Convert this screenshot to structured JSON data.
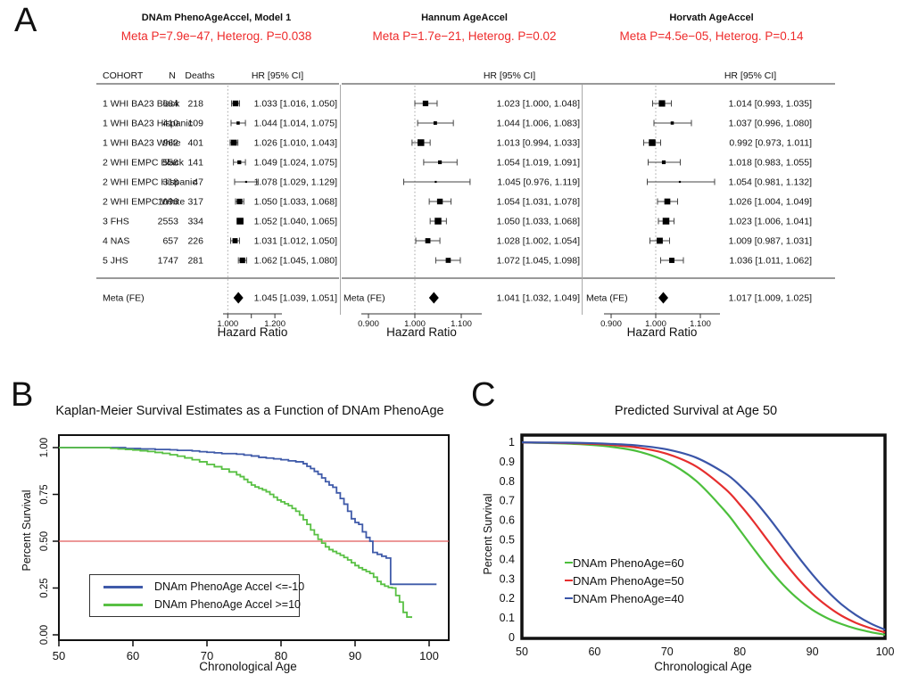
{
  "panels": {
    "a": "A",
    "b": "B",
    "c": "C"
  },
  "subtitle_color": "#ee2b2b",
  "chart_data": [
    {
      "type": "forest",
      "title": "DNAm PhenoAgeAccel, Model 1",
      "subtitle": "Meta P=7.9e−47, Heterog. P=0.038",
      "columns": [
        "COHORT",
        "N",
        "Deaths",
        "HR [95% CI]"
      ],
      "xlabel": "Hazard Ratio",
      "axis": {
        "ticks": [
          1.0,
          1.1,
          1.2
        ],
        "tick_labels": [
          "1.000",
          "",
          "1.200"
        ],
        "ref_line": 1.0
      },
      "rows": [
        {
          "cohort": "1 WHI BA23 Black",
          "n": 664,
          "deaths": 218,
          "hr": 1.033,
          "ci_low": 1.016,
          "ci_high": 1.05,
          "label": "1.033 [1.016, 1.050]"
        },
        {
          "cohort": "1 WHI BA23 Hispanic",
          "n": 410,
          "deaths": 109,
          "hr": 1.044,
          "ci_low": 1.014,
          "ci_high": 1.075,
          "label": "1.044 [1.014, 1.075]"
        },
        {
          "cohort": "1 WHI BA23 White",
          "n": 962,
          "deaths": 401,
          "hr": 1.026,
          "ci_low": 1.01,
          "ci_high": 1.043,
          "label": "1.026 [1.010, 1.043]"
        },
        {
          "cohort": "2 WHI EMPC Black",
          "n": 558,
          "deaths": 141,
          "hr": 1.049,
          "ci_low": 1.024,
          "ci_high": 1.075,
          "label": "1.049 [1.024, 1.075]"
        },
        {
          "cohort": "2 WHI EMPC Hispanic",
          "n": 318,
          "deaths": 47,
          "hr": 1.078,
          "ci_low": 1.029,
          "ci_high": 1.129,
          "label": "1.078 [1.029, 1.129]"
        },
        {
          "cohort": "2 WHI EMPC White",
          "n": 1096,
          "deaths": 317,
          "hr": 1.05,
          "ci_low": 1.033,
          "ci_high": 1.068,
          "label": "1.050 [1.033, 1.068]"
        },
        {
          "cohort": "3 FHS",
          "n": 2553,
          "deaths": 334,
          "hr": 1.052,
          "ci_low": 1.04,
          "ci_high": 1.065,
          "label": "1.052 [1.040, 1.065]"
        },
        {
          "cohort": "4 NAS",
          "n": 657,
          "deaths": 226,
          "hr": 1.031,
          "ci_low": 1.012,
          "ci_high": 1.05,
          "label": "1.031 [1.012, 1.050]"
        },
        {
          "cohort": "5 JHS",
          "n": 1747,
          "deaths": 281,
          "hr": 1.062,
          "ci_low": 1.045,
          "ci_high": 1.08,
          "label": "1.062 [1.045, 1.080]"
        }
      ],
      "meta": {
        "cohort": "Meta (FE)",
        "hr": 1.045,
        "ci_low": 1.039,
        "ci_high": 1.051,
        "label": "1.045 [1.039, 1.051]"
      }
    },
    {
      "type": "forest",
      "title": "Hannum AgeAccel",
      "subtitle": "Meta P=1.7e−21, Heterog. P=0.02",
      "columns": [
        "HR [95% CI]"
      ],
      "xlabel": "Hazard Ratio",
      "axis": {
        "ticks": [
          0.9,
          1.0,
          1.1
        ],
        "tick_labels": [
          "0.900",
          "1.000",
          "1.100"
        ],
        "ref_line": 1.0
      },
      "rows": [
        {
          "hr": 1.023,
          "ci_low": 1.0,
          "ci_high": 1.048,
          "label": "1.023 [1.000, 1.048]"
        },
        {
          "hr": 1.044,
          "ci_low": 1.006,
          "ci_high": 1.083,
          "label": "1.044 [1.006, 1.083]"
        },
        {
          "hr": 1.013,
          "ci_low": 0.994,
          "ci_high": 1.033,
          "label": "1.013 [0.994, 1.033]"
        },
        {
          "hr": 1.054,
          "ci_low": 1.019,
          "ci_high": 1.091,
          "label": "1.054 [1.019, 1.091]"
        },
        {
          "hr": 1.045,
          "ci_low": 0.976,
          "ci_high": 1.119,
          "label": "1.045 [0.976, 1.119]"
        },
        {
          "hr": 1.054,
          "ci_low": 1.031,
          "ci_high": 1.078,
          "label": "1.054 [1.031, 1.078]"
        },
        {
          "hr": 1.05,
          "ci_low": 1.033,
          "ci_high": 1.068,
          "label": "1.050 [1.033, 1.068]"
        },
        {
          "hr": 1.028,
          "ci_low": 1.002,
          "ci_high": 1.054,
          "label": "1.028 [1.002, 1.054]"
        },
        {
          "hr": 1.072,
          "ci_low": 1.045,
          "ci_high": 1.098,
          "label": "1.072 [1.045, 1.098]"
        }
      ],
      "meta": {
        "cohort": "Meta (FE)",
        "hr": 1.041,
        "ci_low": 1.032,
        "ci_high": 1.049,
        "label": "1.041 [1.032, 1.049]"
      }
    },
    {
      "type": "forest",
      "title": "Horvath AgeAccel",
      "subtitle": "Meta P=4.5e−05, Heterog. P=0.14",
      "columns": [
        "HR [95% CI]"
      ],
      "xlabel": "Hazard Ratio",
      "axis": {
        "ticks": [
          0.9,
          1.0,
          1.1
        ],
        "tick_labels": [
          "0.900",
          "1.000",
          "1.100"
        ],
        "ref_line": 1.0
      },
      "rows": [
        {
          "hr": 1.014,
          "ci_low": 0.993,
          "ci_high": 1.035,
          "label": "1.014 [0.993, 1.035]"
        },
        {
          "hr": 1.037,
          "ci_low": 0.996,
          "ci_high": 1.08,
          "label": "1.037 [0.996, 1.080]"
        },
        {
          "hr": 0.992,
          "ci_low": 0.973,
          "ci_high": 1.011,
          "label": "0.992 [0.973, 1.011]"
        },
        {
          "hr": 1.018,
          "ci_low": 0.983,
          "ci_high": 1.055,
          "label": "1.018 [0.983, 1.055]"
        },
        {
          "hr": 1.054,
          "ci_low": 0.981,
          "ci_high": 1.132,
          "label": "1.054 [0.981, 1.132]"
        },
        {
          "hr": 1.026,
          "ci_low": 1.004,
          "ci_high": 1.049,
          "label": "1.026 [1.004, 1.049]"
        },
        {
          "hr": 1.023,
          "ci_low": 1.006,
          "ci_high": 1.041,
          "label": "1.023 [1.006, 1.041]"
        },
        {
          "hr": 1.009,
          "ci_low": 0.987,
          "ci_high": 1.031,
          "label": "1.009 [0.987, 1.031]"
        },
        {
          "hr": 1.036,
          "ci_low": 1.011,
          "ci_high": 1.062,
          "label": "1.036 [1.011, 1.062]"
        }
      ],
      "meta": {
        "cohort": "Meta (FE)",
        "hr": 1.017,
        "ci_low": 1.009,
        "ci_high": 1.025,
        "label": "1.017 [1.009, 1.025]"
      }
    },
    {
      "type": "line-step",
      "title": "Kaplan-Meier Survival Estimates as a Function of DNAm PhenoAge",
      "xlabel": "Chronological Age",
      "ylabel": "Percent Survival",
      "xlim": [
        50,
        102.6
      ],
      "ylim": [
        0,
        1
      ],
      "xticks": [
        50,
        60,
        70,
        80,
        90,
        100
      ],
      "yticks": [
        0.0,
        0.25,
        0.5,
        0.75,
        1.0
      ],
      "ytick_labels": [
        "0.00",
        "0.25",
        "0.50",
        "0.75",
        "1.00"
      ],
      "ref_line_y": 0.5,
      "ref_line_color": "#e05a5a",
      "legend": [
        {
          "label": "DNAm PhenoAge Accel <=-10",
          "color": "#3f5aa9"
        },
        {
          "label": "DNAm PhenoAge Accel >=10",
          "color": "#58c043"
        }
      ],
      "series": [
        {
          "name": "DNAm PhenoAge Accel <=-10",
          "color": "#3f5aa9",
          "steps": [
            [
              50,
              1
            ],
            [
              58,
              1
            ],
            [
              59,
              0.995
            ],
            [
              61,
              0.993
            ],
            [
              63,
              0.99
            ],
            [
              65,
              0.988
            ],
            [
              66,
              0.985
            ],
            [
              68,
              0.982
            ],
            [
              69,
              0.978
            ],
            [
              70,
              0.975
            ],
            [
              71,
              0.972
            ],
            [
              72,
              0.968
            ],
            [
              74,
              0.965
            ],
            [
              75,
              0.96
            ],
            [
              76,
              0.955
            ],
            [
              77,
              0.948
            ],
            [
              78,
              0.944
            ],
            [
              79,
              0.94
            ],
            [
              80,
              0.935
            ],
            [
              81,
              0.929
            ],
            [
              82,
              0.924
            ],
            [
              83,
              0.914
            ],
            [
              83.5,
              0.9
            ],
            [
              84,
              0.888
            ],
            [
              84.5,
              0.873
            ],
            [
              85,
              0.858
            ],
            [
              85.5,
              0.838
            ],
            [
              86,
              0.818
            ],
            [
              86.5,
              0.8
            ],
            [
              87,
              0.788
            ],
            [
              87.5,
              0.758
            ],
            [
              88,
              0.728
            ],
            [
              88.5,
              0.698
            ],
            [
              89,
              0.66
            ],
            [
              89.5,
              0.62
            ],
            [
              90,
              0.6
            ],
            [
              90.5,
              0.59
            ],
            [
              91,
              0.55
            ],
            [
              91.5,
              0.52
            ],
            [
              92,
              0.5
            ],
            [
              92.4,
              0.44
            ],
            [
              93,
              0.43
            ],
            [
              93.6,
              0.42
            ],
            [
              94.2,
              0.41
            ],
            [
              94.8,
              0.27
            ],
            [
              101,
              0.27
            ]
          ]
        },
        {
          "name": "DNAm PhenoAge Accel >=10",
          "color": "#58c043",
          "steps": [
            [
              50,
              1
            ],
            [
              56,
              1
            ],
            [
              57,
              0.996
            ],
            [
              58,
              0.993
            ],
            [
              59,
              0.99
            ],
            [
              60,
              0.987
            ],
            [
              61,
              0.983
            ],
            [
              62,
              0.979
            ],
            [
              63,
              0.974
            ],
            [
              64,
              0.969
            ],
            [
              65,
              0.962
            ],
            [
              66,
              0.954
            ],
            [
              67,
              0.945
            ],
            [
              68,
              0.935
            ],
            [
              69,
              0.924
            ],
            [
              70,
              0.91
            ],
            [
              71,
              0.898
            ],
            [
              72,
              0.885
            ],
            [
              73,
              0.87
            ],
            [
              74,
              0.855
            ],
            [
              74.5,
              0.845
            ],
            [
              75,
              0.83
            ],
            [
              75.5,
              0.815
            ],
            [
              76,
              0.8
            ],
            [
              76.5,
              0.79
            ],
            [
              77,
              0.782
            ],
            [
              77.5,
              0.774
            ],
            [
              78,
              0.764
            ],
            [
              78.5,
              0.75
            ],
            [
              79,
              0.735
            ],
            [
              79.5,
              0.72
            ],
            [
              80,
              0.71
            ],
            [
              80.5,
              0.7
            ],
            [
              81,
              0.69
            ],
            [
              81.5,
              0.675
            ],
            [
              82,
              0.66
            ],
            [
              82.5,
              0.64
            ],
            [
              83,
              0.615
            ],
            [
              83.5,
              0.59
            ],
            [
              84,
              0.56
            ],
            [
              84.5,
              0.535
            ],
            [
              85,
              0.51
            ],
            [
              85.5,
              0.49
            ],
            [
              86,
              0.47
            ],
            [
              86.5,
              0.455
            ],
            [
              87,
              0.445
            ],
            [
              87.5,
              0.435
            ],
            [
              88,
              0.425
            ],
            [
              88.5,
              0.413
            ],
            [
              89,
              0.4
            ],
            [
              89.5,
              0.385
            ],
            [
              90,
              0.37
            ],
            [
              90.5,
              0.358
            ],
            [
              91,
              0.348
            ],
            [
              91.5,
              0.338
            ],
            [
              92,
              0.328
            ],
            [
              92.5,
              0.308
            ],
            [
              93,
              0.285
            ],
            [
              93.5,
              0.27
            ],
            [
              94,
              0.26
            ],
            [
              94.5,
              0.253
            ],
            [
              95,
              0.25
            ],
            [
              95.5,
              0.21
            ],
            [
              96,
              0.175
            ],
            [
              96.5,
              0.12
            ],
            [
              97,
              0.095
            ],
            [
              97.6,
              0.09
            ]
          ]
        }
      ]
    },
    {
      "type": "line",
      "title": "Predicted Survival at Age 50",
      "xlabel": "Chronological Age",
      "ylabel": "Percent Survival",
      "xlim": [
        50,
        100
      ],
      "ylim": [
        0,
        1
      ],
      "xticks": [
        50,
        60,
        70,
        80,
        90,
        100
      ],
      "yticks": [
        1,
        0.9,
        0.8,
        0.7,
        0.6,
        0.5,
        0.4,
        0.3,
        0.2,
        0.1,
        0
      ],
      "ytick_labels": [
        "1",
        "0.9",
        "0.8",
        "0.7",
        "0.6",
        "0.5",
        "0.4",
        "0.3",
        "0.2",
        "0.1",
        "0"
      ],
      "legend": [
        {
          "label": "DNAm PhenoAge=60",
          "color": "#4cbf3c"
        },
        {
          "label": "DNAm PhenoAge=50",
          "color": "#e62e2e"
        },
        {
          "label": "DNAm PhenoAge=40",
          "color": "#3a55a8"
        }
      ],
      "x": [
        50,
        54,
        58,
        62,
        66,
        70,
        74,
        78,
        80,
        82,
        84,
        86,
        88,
        90,
        92,
        94,
        96,
        98,
        100
      ],
      "series": [
        {
          "name": "DNAm PhenoAge=60",
          "color": "#4cbf3c",
          "values": [
            0.998,
            0.9955,
            0.99,
            0.978,
            0.953,
            0.9,
            0.802,
            0.646,
            0.55,
            0.45,
            0.354,
            0.269,
            0.198,
            0.142,
            0.1,
            0.069,
            0.045,
            0.028,
            0.014
          ]
        },
        {
          "name": "DNAm PhenoAge=50",
          "color": "#e62e2e",
          "values": [
            0.9988,
            0.997,
            0.994,
            0.987,
            0.972,
            0.94,
            0.876,
            0.761,
            0.681,
            0.589,
            0.49,
            0.392,
            0.302,
            0.224,
            0.162,
            0.112,
            0.075,
            0.048,
            0.026
          ]
        },
        {
          "name": "DNAm PhenoAge=40",
          "color": "#3a55a8",
          "values": [
            0.9993,
            0.998,
            0.997,
            0.992,
            0.983,
            0.963,
            0.921,
            0.84,
            0.779,
            0.703,
            0.613,
            0.515,
            0.416,
            0.323,
            0.24,
            0.17,
            0.115,
            0.072,
            0.04
          ]
        }
      ]
    }
  ]
}
